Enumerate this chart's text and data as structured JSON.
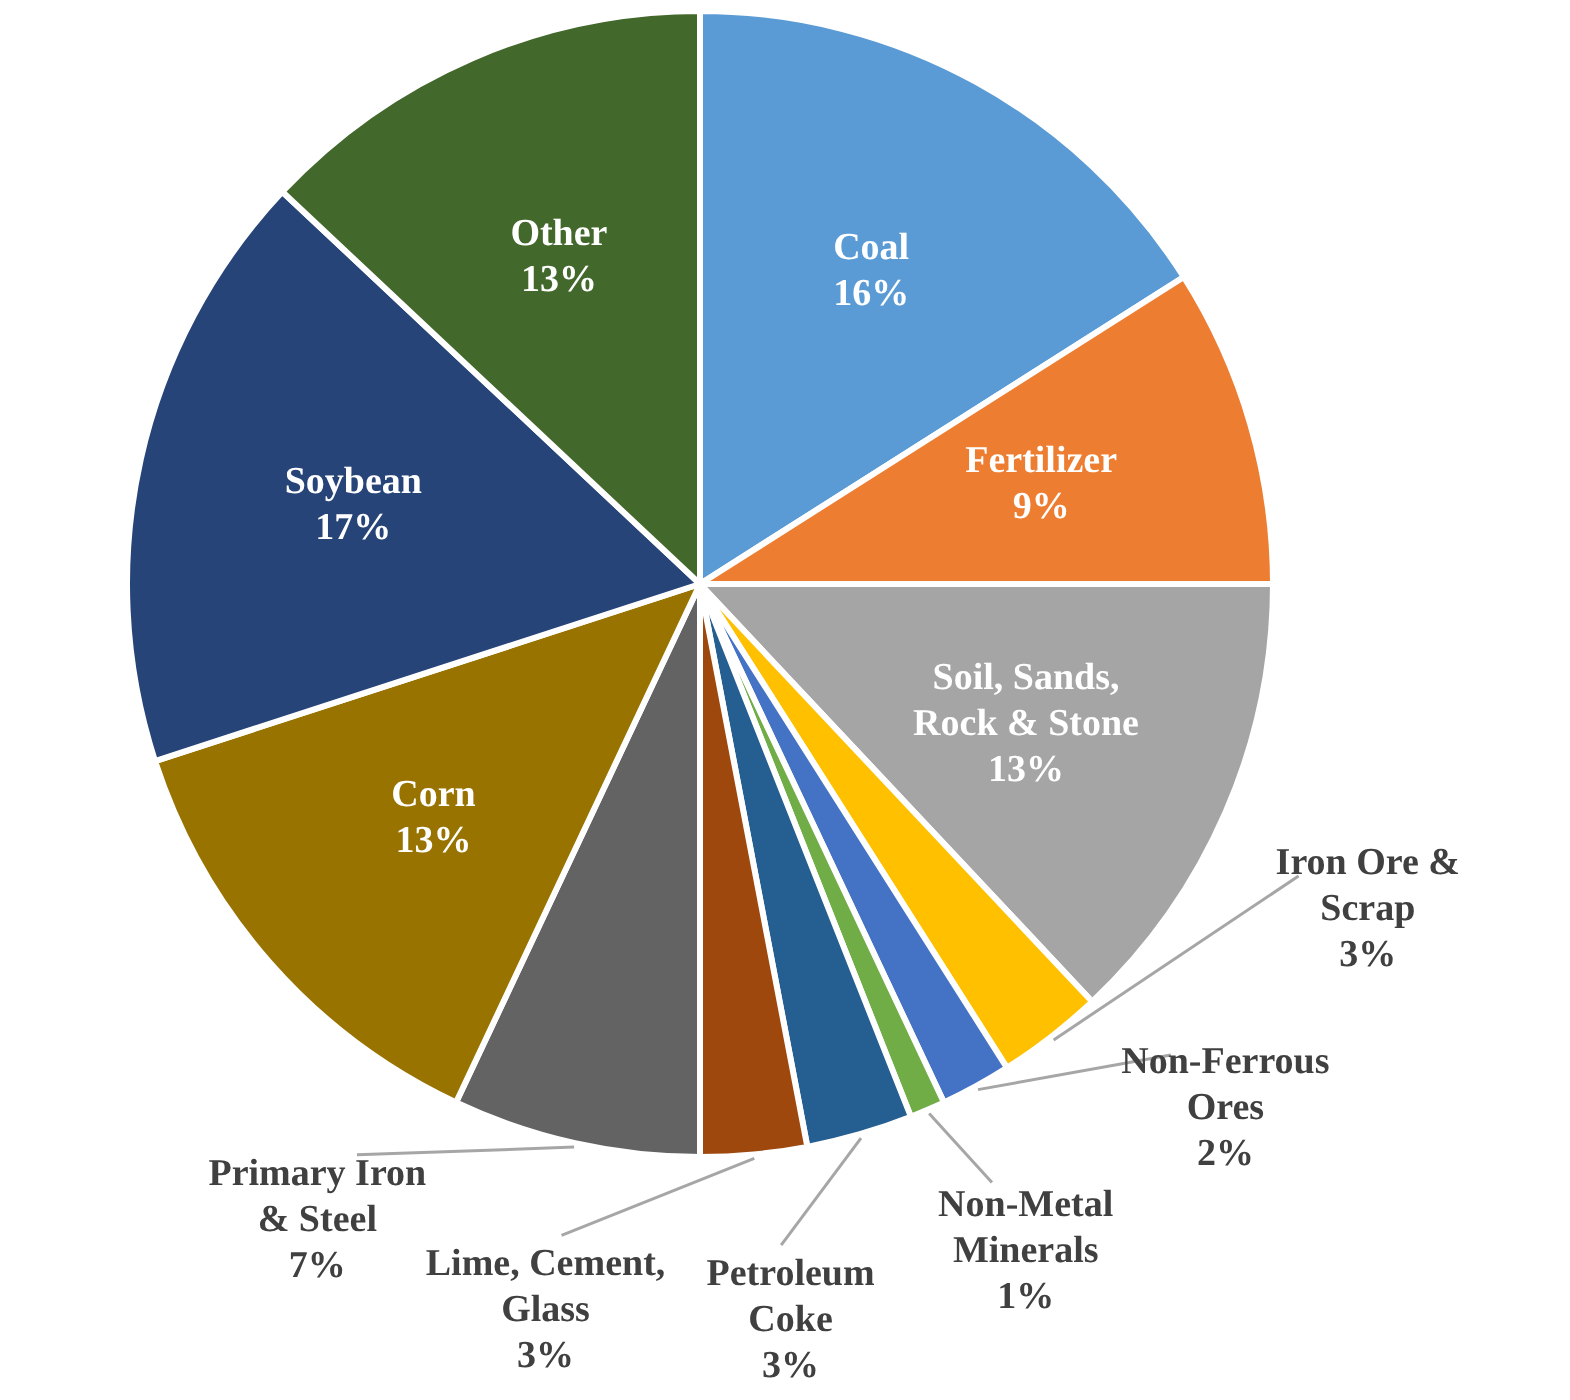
{
  "chart_data": {
    "type": "pie",
    "legend": false,
    "data_labels": true,
    "categories": [
      "Coal",
      "Fertilizer",
      "Soil, Sands, Rock & Stone",
      "Iron Ore & Scrap",
      "Non-Ferrous Ores",
      "Non-Metal Minerals",
      "Petroleum Coke",
      "Lime, Cement, Glass",
      "Primary Iron & Steel",
      "Corn",
      "Soybean",
      "Other"
    ],
    "values": [
      16,
      9,
      13,
      3,
      2,
      1,
      3,
      3,
      7,
      13,
      17,
      13
    ],
    "value_labels": [
      "16%",
      "9%",
      "13%",
      "3%",
      "2%",
      "1%",
      "3%",
      "3%",
      "7%",
      "13%",
      "17%",
      "13%"
    ],
    "colors": [
      "#5b9bd5",
      "#ed7d31",
      "#a5a5a5",
      "#ffc000",
      "#4472c4",
      "#70ad47",
      "#255e91",
      "#9e480e",
      "#636363",
      "#997300",
      "#264478",
      "#43682b"
    ]
  }
}
